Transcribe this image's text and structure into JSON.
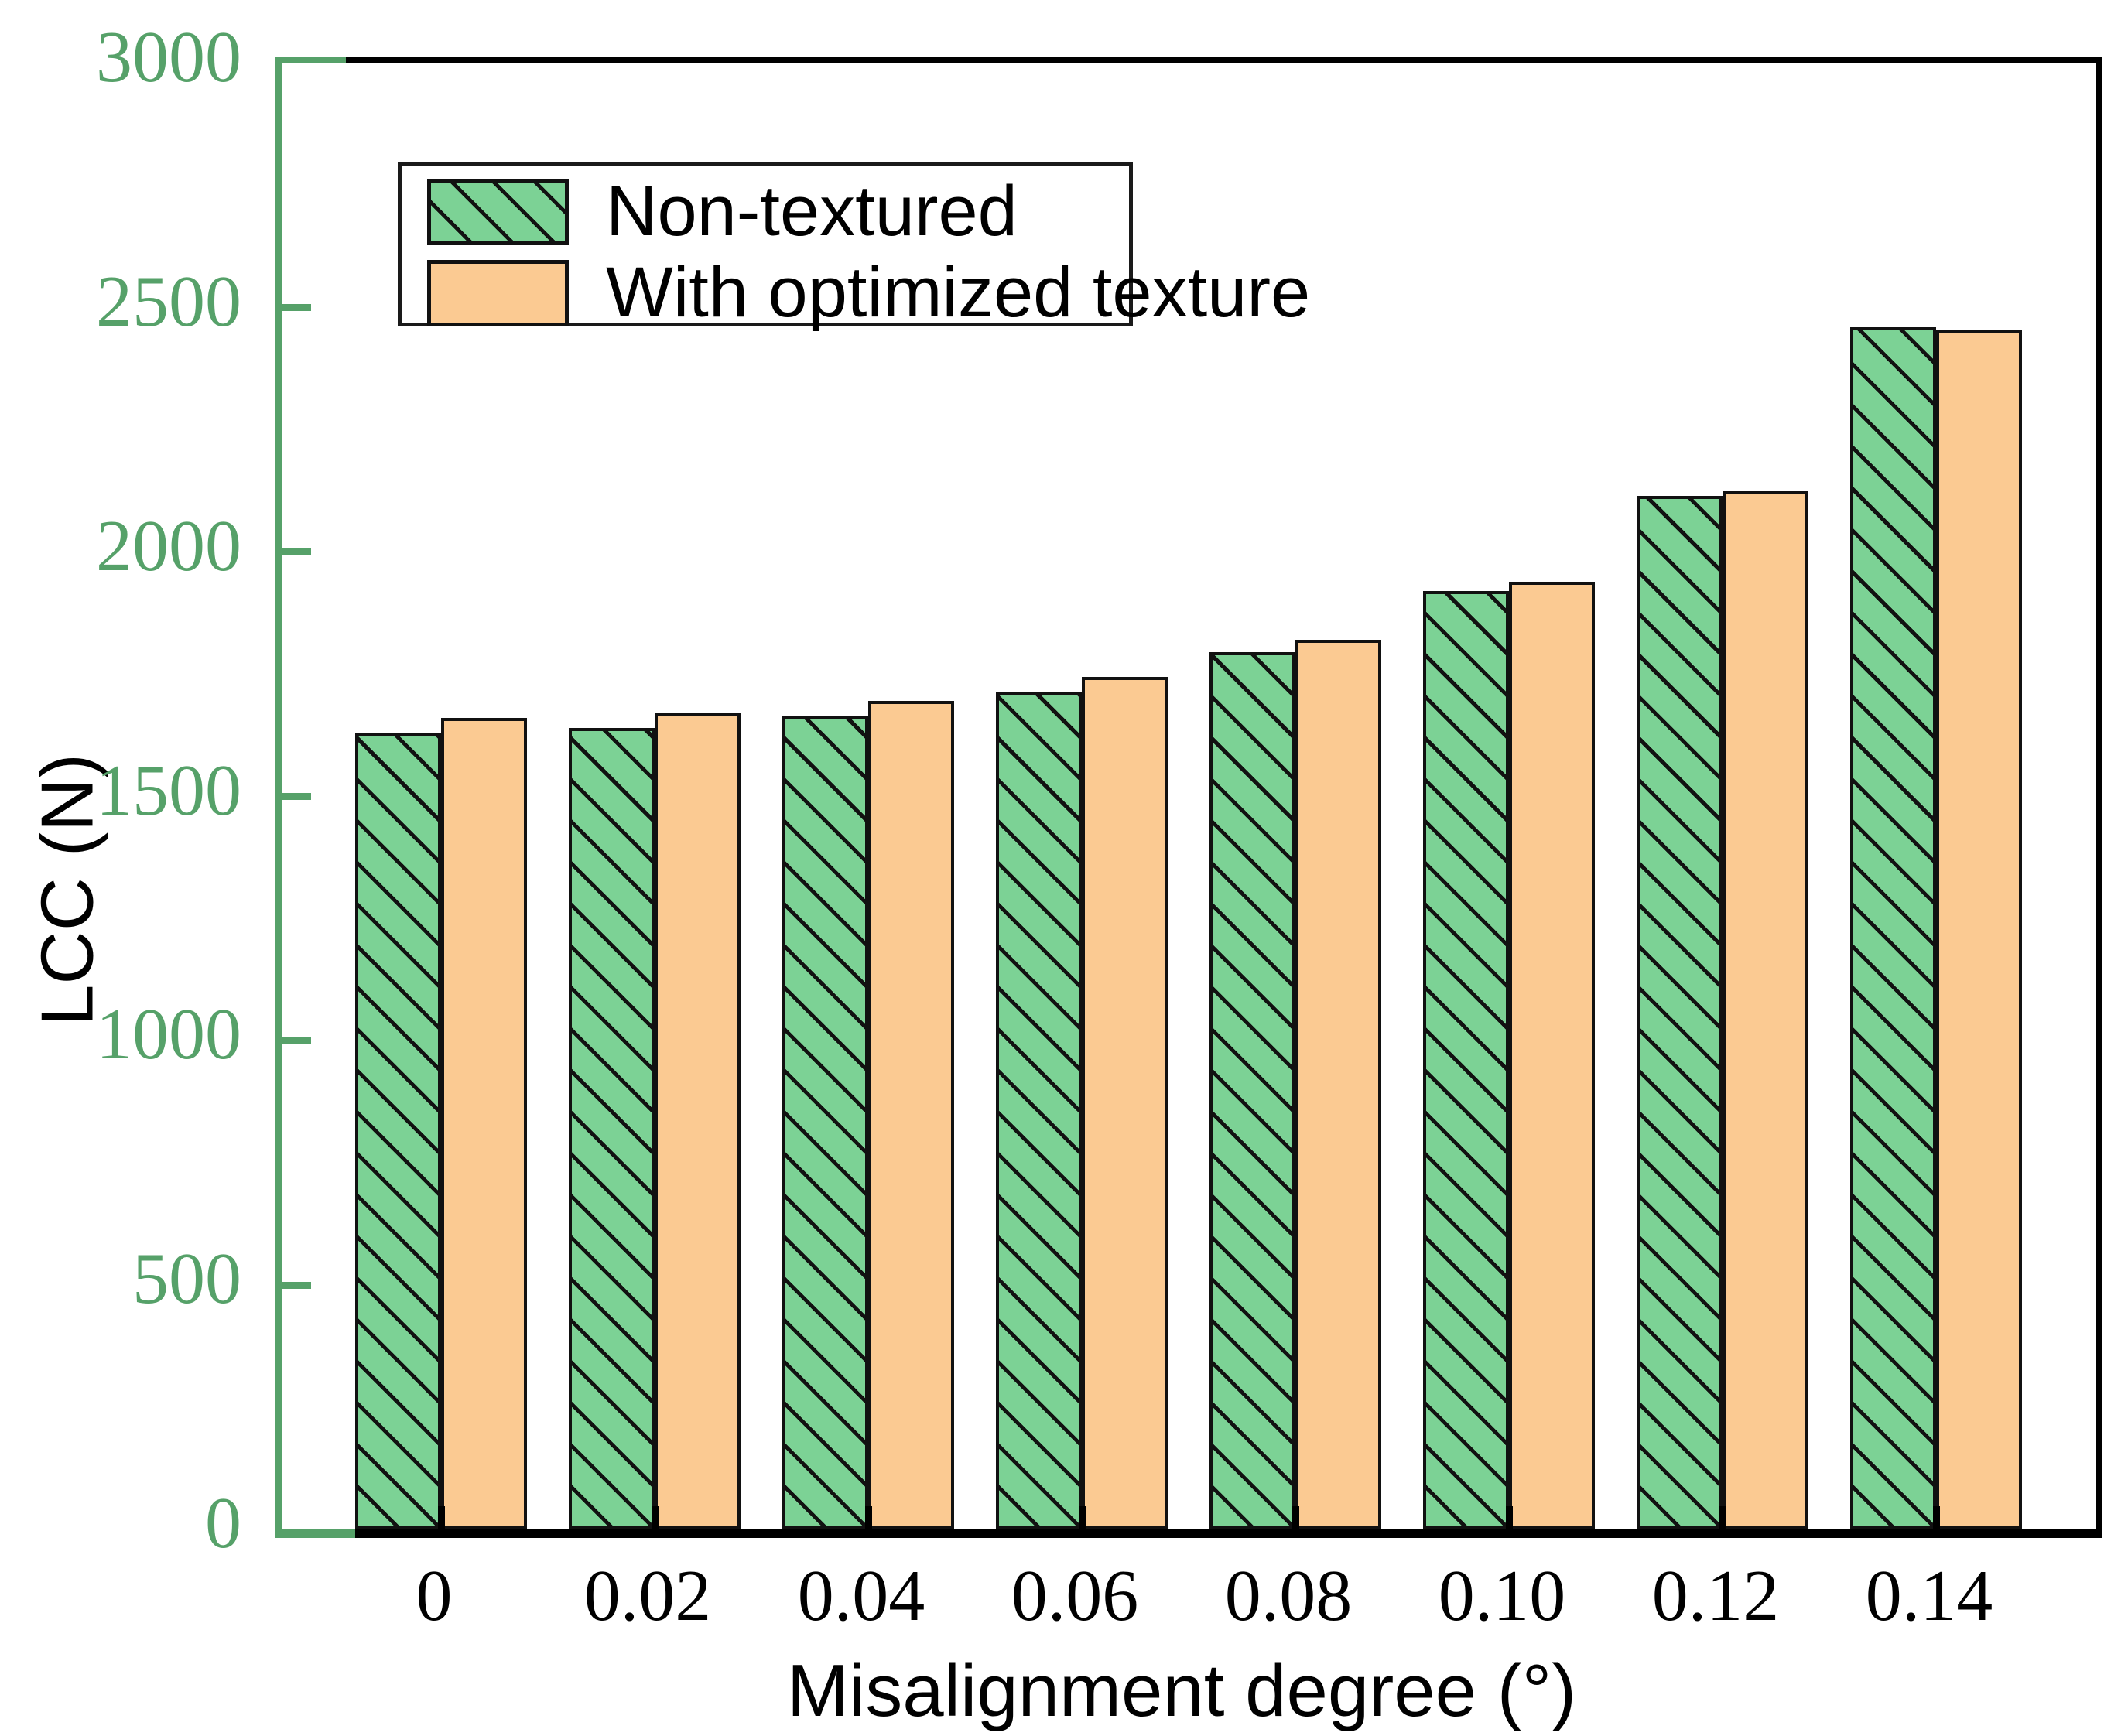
{
  "chart_data": {
    "type": "bar",
    "title": "",
    "xlabel": "Misalignment degree (°)",
    "ylabel": "LCC (N)",
    "categories": [
      "0",
      "0.02",
      "0.04",
      "0.06",
      "0.08",
      "0.10",
      "0.12",
      "0.14"
    ],
    "series": [
      {
        "name": "Non-textured",
        "color": "#7cd295",
        "hatch": "diagonal-black",
        "values": [
          1630,
          1640,
          1665,
          1715,
          1795,
          1920,
          2115,
          2460
        ]
      },
      {
        "name": "With optimized texture",
        "color": "#fbca92",
        "hatch": "none",
        "values": [
          1660,
          1670,
          1695,
          1745,
          1820,
          1940,
          2125,
          2455
        ]
      }
    ],
    "ylim": [
      0,
      3000
    ],
    "yticks": [
      0,
      500,
      1000,
      1500,
      2000,
      2500,
      3000
    ],
    "grid": false,
    "legend_position": "upper-left-inside",
    "colors": {
      "axis_left": "#56a169",
      "ytick_labels": "#56a169",
      "axis_other": "#000000",
      "xtick_labels": "#000000",
      "bar_outline": "#111111",
      "background": "#ffffff"
    }
  }
}
